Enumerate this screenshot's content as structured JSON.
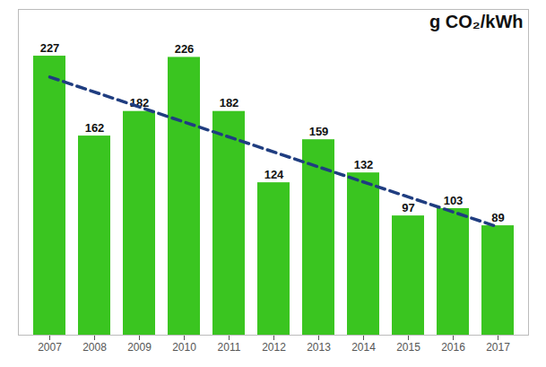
{
  "chart_data": {
    "type": "bar",
    "categories": [
      "2007",
      "2008",
      "2009",
      "2010",
      "2011",
      "2012",
      "2013",
      "2014",
      "2015",
      "2016",
      "2017"
    ],
    "values": [
      227,
      162,
      182,
      226,
      182,
      124,
      159,
      132,
      97,
      103,
      89
    ],
    "color": "#3ac520",
    "data_labels": true,
    "ylim": [
      0,
      265
    ],
    "tick_labels": "x",
    "grid": false,
    "annotation": "g CO₂/kWh",
    "trend": {
      "values": [
        210,
        88
      ],
      "color": "#1f3d80",
      "line_style": "dashed"
    }
  }
}
